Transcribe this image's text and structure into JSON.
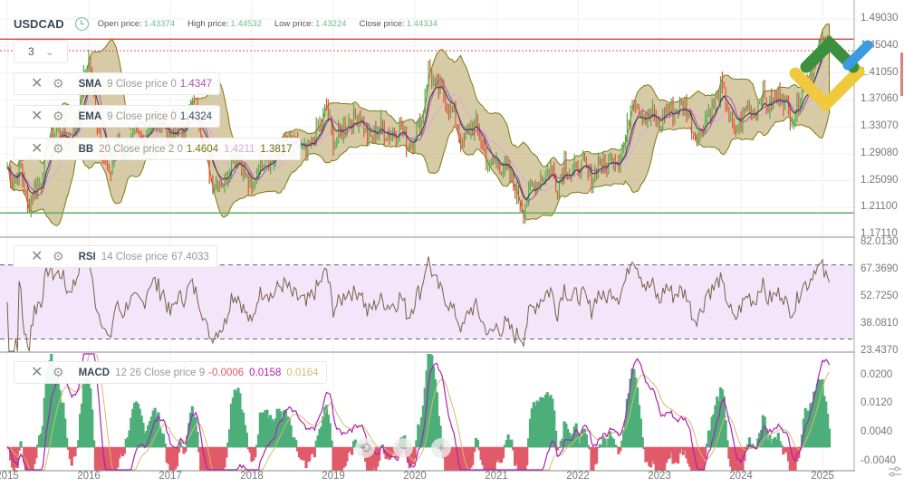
{
  "header": {
    "symbol": "USDCAD",
    "open_label": "Open price:",
    "open": "1.43374",
    "high_label": "High price:",
    "high": "1.44532",
    "low_label": "Low price:",
    "low": "1.43224",
    "close_label": "Close price:",
    "close": "1.44334"
  },
  "timeframe_select": {
    "value": "3"
  },
  "indicators": {
    "sma": {
      "name": "SMA",
      "params": "9 Close price 0",
      "value": "1.4347",
      "color": "#b04fb0"
    },
    "ema": {
      "name": "EMA",
      "params": "9 Close price 0",
      "value": "1.4324",
      "color": "#2f4a6a"
    },
    "bb": {
      "name": "BB",
      "params": "20 Close price 2 0",
      "upper": "1.4604",
      "middle": "1.4211",
      "lower": "1.3817",
      "upper_color": "#7a7a10",
      "middle_color": "#d8a8e0"
    },
    "rsi": {
      "name": "RSI",
      "params": "14 Close price",
      "value": "67.4033"
    },
    "macd": {
      "name": "MACD",
      "params": "12 26 Close price 9",
      "hist": "-0.0006",
      "macd": "0.0158",
      "signal": "0.0164",
      "hist_color": "#e05a6a",
      "macd_color": "#b020b0",
      "signal_color": "#d8b870"
    }
  },
  "axes": {
    "price_ticks": [
      "1.49030",
      "1.45040",
      "1.41050",
      "1.37060",
      "1.33070",
      "1.29080",
      "1.25090",
      "1.21100",
      "1.17110"
    ],
    "rsi_ticks": [
      "82.0130",
      "67.3690",
      "52.7250",
      "38.0810",
      "23.4370"
    ],
    "macd_ticks": [
      "0.0200",
      "0.0120",
      "0.0040",
      "-0.0040"
    ],
    "years": [
      "2015",
      "2016",
      "2017",
      "2018",
      "2019",
      "2020",
      "2021",
      "2022",
      "2023",
      "2024",
      "2025"
    ]
  },
  "levels": {
    "resistance": 1.4604,
    "support": 1.203,
    "current": 1.44334,
    "colors": {
      "resistance": "#d9534f",
      "support": "#5cae5c"
    }
  },
  "colors": {
    "up": "#4caf50",
    "down": "#e0533a",
    "bb_fill": "#c9b98a",
    "rsi_band": "#f3e6fb",
    "rsi_line": "#7a6048"
  },
  "controls": {
    "reset_icon": "⟲",
    "zoom_out": "−",
    "zoom_in": "+"
  },
  "chart_data": {
    "type": "candlestick",
    "start": "2015-01",
    "interval": "monthly (approx closes)",
    "price_ylim": [
      1.1711,
      1.4903
    ],
    "closes": [
      1.27,
      1.25,
      1.27,
      1.21,
      1.24,
      1.25,
      1.31,
      1.32,
      1.33,
      1.31,
      1.33,
      1.39,
      1.43,
      1.35,
      1.3,
      1.25,
      1.31,
      1.29,
      1.31,
      1.31,
      1.31,
      1.34,
      1.34,
      1.34,
      1.3,
      1.33,
      1.33,
      1.36,
      1.35,
      1.3,
      1.25,
      1.25,
      1.25,
      1.29,
      1.29,
      1.26,
      1.23,
      1.28,
      1.29,
      1.28,
      1.3,
      1.31,
      1.3,
      1.3,
      1.29,
      1.31,
      1.33,
      1.36,
      1.31,
      1.32,
      1.34,
      1.34,
      1.35,
      1.31,
      1.32,
      1.33,
      1.32,
      1.32,
      1.33,
      1.3,
      1.32,
      1.34,
      1.42,
      1.39,
      1.38,
      1.36,
      1.34,
      1.3,
      1.33,
      1.33,
      1.3,
      1.27,
      1.28,
      1.27,
      1.26,
      1.23,
      1.21,
      1.24,
      1.25,
      1.26,
      1.27,
      1.24,
      1.28,
      1.26,
      1.27,
      1.27,
      1.25,
      1.28,
      1.27,
      1.29,
      1.28,
      1.31,
      1.38,
      1.36,
      1.34,
      1.35,
      1.33,
      1.36,
      1.35,
      1.36,
      1.36,
      1.32,
      1.32,
      1.35,
      1.36,
      1.39,
      1.36,
      1.32,
      1.34,
      1.36,
      1.35,
      1.38,
      1.36,
      1.37,
      1.38,
      1.35,
      1.35,
      1.39,
      1.4,
      1.44,
      1.45,
      1.443
    ],
    "rsi_ylim": [
      23.437,
      82.013
    ],
    "rsi_levels": [
      70,
      30
    ],
    "macd_ylim": [
      -0.0066,
      0.0262
    ]
  }
}
